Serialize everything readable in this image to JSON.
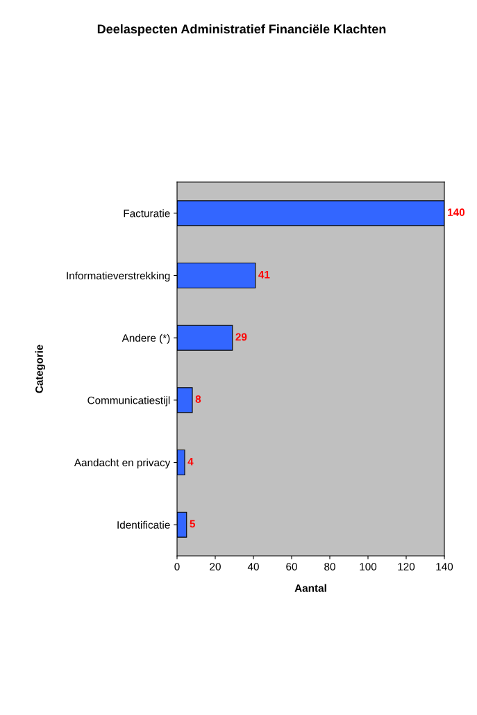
{
  "chart_data": {
    "type": "bar",
    "orientation": "horizontal",
    "title": "Deelaspecten Administratief Financiële Klachten",
    "xlabel": "Aantal",
    "ylabel": "Categorie",
    "categories": [
      "Facturatie",
      "Informatieverstrekking",
      "Andere (*)",
      "Communicatiestijl",
      "Aandacht en privacy",
      "Identificatie"
    ],
    "values": [
      140,
      41,
      29,
      8,
      4,
      5
    ],
    "color": "#3366ff",
    "xlim": [
      0,
      140
    ],
    "xticks": [
      0,
      20,
      40,
      60,
      80,
      100,
      120,
      140
    ],
    "data_labels": true,
    "grid": false,
    "legend": false
  }
}
